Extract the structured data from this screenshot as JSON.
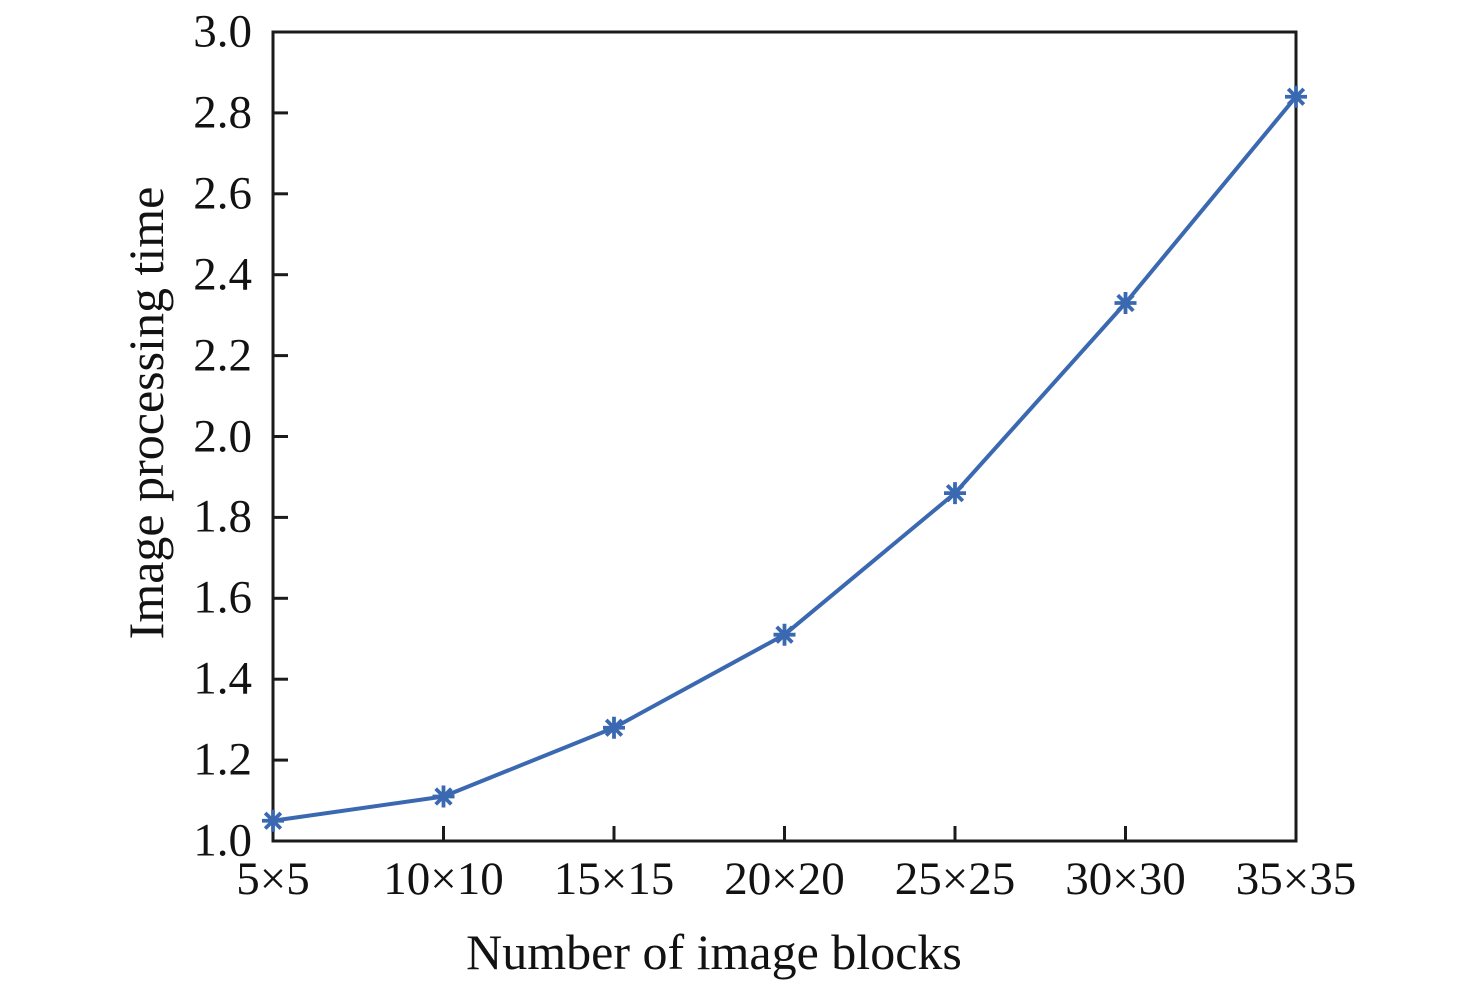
{
  "figure": {
    "background": "#FFFFFF"
  },
  "chart_data": {
    "type": "line",
    "title": "",
    "xlabel": "Number of image blocks",
    "ylabel": "Image processing time",
    "categories": [
      "5×5",
      "10×10",
      "15×15",
      "20×20",
      "25×25",
      "30×30",
      "35×35"
    ],
    "series": [
      {
        "name": "Image processing time",
        "values": [
          1.05,
          1.11,
          1.28,
          1.51,
          1.86,
          2.33,
          2.84
        ]
      }
    ],
    "ylim": [
      1.0,
      3.0
    ],
    "y_tick_labels": [
      "1.0",
      "1.2",
      "1.4",
      "1.6",
      "1.8",
      "2.0",
      "2.2",
      "2.4",
      "2.6",
      "2.8",
      "3.0"
    ],
    "y_tick_values": [
      1.0,
      1.2,
      1.4,
      1.6,
      1.8,
      2.0,
      2.2,
      2.4,
      2.6,
      2.8,
      3.0
    ],
    "grid": false,
    "legend": "none",
    "marker": "asterisk",
    "line_color": "#3B69B1",
    "marker_color": "#3B69B1",
    "axis_color": "#1B1B1B",
    "text_color": "#121212"
  }
}
